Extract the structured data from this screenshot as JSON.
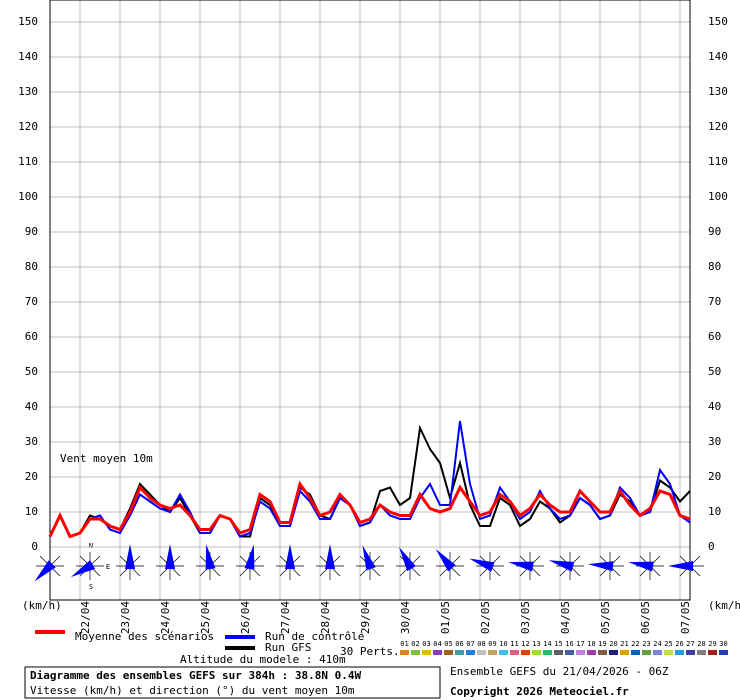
{
  "chart_data": {
    "type": "line",
    "title": "Diagramme des ensembles GEFS sur 384h : 38.8N 0.4W",
    "subtitle": "Vitesse (km/h) et direction (°) du vent moyen 10m",
    "run_info": "Ensemble GEFS du 21/04/2026 - 06Z",
    "copyright": "Copyright 2026 Meteociel.fr",
    "annotation": "Vent moyen 10m",
    "altitude": "Altitude du modele : 410m",
    "y_unit": "(km/h)",
    "compass": [
      "N",
      "E",
      "S"
    ],
    "grid": true,
    "x": [
      0,
      6,
      12,
      18,
      24,
      30,
      36,
      42,
      48,
      54,
      60,
      66,
      72,
      78,
      84,
      90,
      96,
      102,
      108,
      114,
      120,
      126,
      132,
      138,
      144,
      150,
      156,
      162,
      168,
      174,
      180,
      186,
      192,
      198,
      204,
      210,
      216,
      222,
      228,
      234,
      240,
      246,
      252,
      258,
      264,
      270,
      276,
      282,
      288,
      294,
      300,
      306,
      312,
      318,
      324,
      330,
      336,
      342,
      348,
      354,
      360,
      366,
      372,
      378,
      384
    ],
    "xlim": [
      0,
      384
    ],
    "xticks": [
      {
        "value": 18,
        "label": "22/04"
      },
      {
        "value": 42,
        "label": "23/04"
      },
      {
        "value": 66,
        "label": "24/04"
      },
      {
        "value": 90,
        "label": "25/04"
      },
      {
        "value": 114,
        "label": "26/04"
      },
      {
        "value": 138,
        "label": "27/04"
      },
      {
        "value": 162,
        "label": "28/04"
      },
      {
        "value": 186,
        "label": "29/04"
      },
      {
        "value": 210,
        "label": "30/04"
      },
      {
        "value": 234,
        "label": "01/05"
      },
      {
        "value": 258,
        "label": "02/05"
      },
      {
        "value": 282,
        "label": "03/05"
      },
      {
        "value": 306,
        "label": "04/05"
      },
      {
        "value": 330,
        "label": "05/05"
      },
      {
        "value": 354,
        "label": "06/05"
      },
      {
        "value": 378,
        "label": "07/05"
      }
    ],
    "ylim": [
      0,
      150
    ],
    "yticks": [
      0,
      10,
      20,
      30,
      40,
      50,
      60,
      70,
      80,
      90,
      100,
      110,
      120,
      130,
      140,
      150
    ],
    "series": [
      {
        "name": "Moyenne des scénarios",
        "color": "#ff0000",
        "values": [
          3,
          9,
          3,
          4,
          8,
          8,
          6,
          5,
          10,
          17,
          14,
          12,
          11,
          12,
          9,
          5,
          5,
          9,
          8,
          4,
          5,
          15,
          13,
          7,
          7,
          18,
          14,
          9,
          10,
          15,
          12,
          7,
          8,
          12,
          10,
          9,
          9,
          15,
          11,
          10,
          11,
          17,
          13,
          9,
          10,
          15,
          13,
          9,
          11,
          15,
          12,
          10,
          10,
          16,
          13,
          10,
          10,
          16,
          12,
          9,
          11,
          16,
          15,
          9,
          8
        ]
      },
      {
        "name": "Run de contrôle",
        "color": "#0000ff",
        "values": [
          3,
          9,
          3,
          4,
          8,
          9,
          5,
          4,
          9,
          15,
          13,
          11,
          10,
          15,
          10,
          4,
          4,
          9,
          8,
          3,
          4,
          13,
          11,
          6,
          6,
          16,
          13,
          8,
          8,
          14,
          12,
          6,
          7,
          12,
          9,
          8,
          8,
          14,
          18,
          12,
          12,
          36,
          18,
          8,
          9,
          17,
          13,
          8,
          10,
          16,
          11,
          8,
          9,
          14,
          12,
          8,
          9,
          17,
          14,
          9,
          10,
          22,
          18,
          9,
          7
        ]
      },
      {
        "name": "Run GFS",
        "color": "#000000",
        "values": [
          3,
          9,
          3,
          4,
          9,
          8,
          6,
          5,
          11,
          18,
          15,
          12,
          10,
          14,
          9,
          4,
          4,
          9,
          8,
          3,
          3,
          14,
          12,
          6,
          6,
          17,
          15,
          9,
          8,
          14,
          12,
          6,
          7,
          16,
          17,
          12,
          14,
          34,
          28,
          24,
          14,
          24,
          12,
          6,
          6,
          14,
          12,
          6,
          8,
          13,
          11,
          7,
          9,
          14,
          12,
          8,
          9,
          15,
          13,
          9,
          10,
          19,
          17,
          13,
          16
        ]
      }
    ],
    "perturbations_label": "30 Perts.",
    "perturbations": [
      {
        "name": "01",
        "color": "#e08020"
      },
      {
        "name": "02",
        "color": "#80c040"
      },
      {
        "name": "03",
        "color": "#e0c000"
      },
      {
        "name": "04",
        "color": "#8040c0"
      },
      {
        "name": "05",
        "color": "#a06020"
      },
      {
        "name": "06",
        "color": "#40a0a0"
      },
      {
        "name": "07",
        "color": "#2080e0"
      },
      {
        "name": "08",
        "color": "#c0c0c0"
      },
      {
        "name": "09",
        "color": "#c0a060"
      },
      {
        "name": "10",
        "color": "#40c0e0"
      },
      {
        "name": "11",
        "color": "#e06080"
      },
      {
        "name": "12",
        "color": "#e04000"
      },
      {
        "name": "13",
        "color": "#a0e020"
      },
      {
        "name": "14",
        "color": "#20c060"
      },
      {
        "name": "15",
        "color": "#606060"
      },
      {
        "name": "16",
        "color": "#4060a0"
      },
      {
        "name": "17",
        "color": "#c080e0"
      },
      {
        "name": "18",
        "color": "#a040a0"
      },
      {
        "name": "19",
        "color": "#806040"
      },
      {
        "name": "20",
        "color": "#202080"
      },
      {
        "name": "21",
        "color": "#e0a000"
      },
      {
        "name": "22",
        "color": "#0060c0"
      },
      {
        "name": "23",
        "color": "#60a040"
      },
      {
        "name": "24",
        "color": "#8080e0"
      },
      {
        "name": "25",
        "color": "#c0e040"
      },
      {
        "name": "26",
        "color": "#20a0e0"
      },
      {
        "name": "27",
        "color": "#4040a0"
      },
      {
        "name": "28",
        "color": "#808080"
      },
      {
        "name": "29",
        "color": "#a02020"
      },
      {
        "name": "30",
        "color": "#2040c0"
      }
    ],
    "direction_x": [
      0,
      24,
      48,
      72,
      96,
      120,
      144,
      168,
      192,
      216,
      240,
      264,
      288,
      312,
      336,
      360,
      384
    ],
    "directions": [
      225,
      240,
      0,
      0,
      350,
      10,
      0,
      0,
      340,
      330,
      320,
      290,
      280,
      285,
      275,
      280,
      270
    ]
  }
}
